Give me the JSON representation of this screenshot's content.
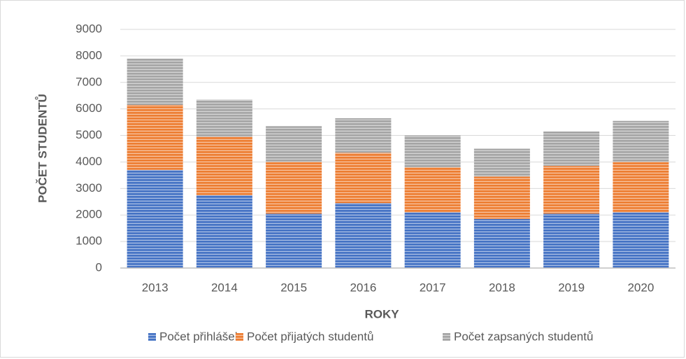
{
  "chart_data": {
    "type": "stacked_bar",
    "categories": [
      "2013",
      "2014",
      "2015",
      "2016",
      "2017",
      "2018",
      "2019",
      "2020"
    ],
    "series": [
      {
        "name": "Počet přihlášek",
        "color": "#4472c4",
        "values": [
          3700,
          2750,
          2050,
          2450,
          2100,
          1850,
          2050,
          2100
        ]
      },
      {
        "name": "Počet přijatých studentů",
        "color": "#ed7d31",
        "values": [
          2450,
          2200,
          1950,
          1900,
          1700,
          1600,
          1800,
          1900
        ]
      },
      {
        "name": "Počet zapsaných studentů",
        "color": "#a5a5a5",
        "values": [
          1750,
          1400,
          1350,
          1300,
          1200,
          1050,
          1300,
          1550
        ]
      }
    ],
    "xlabel": "ROKY",
    "ylabel": "POČET STUDENTŮ",
    "ylim": [
      0,
      9000
    ],
    "yticks": [
      0,
      1000,
      2000,
      3000,
      4000,
      5000,
      6000,
      7000,
      8000,
      9000
    ],
    "grid": true,
    "legend": "bottom"
  }
}
